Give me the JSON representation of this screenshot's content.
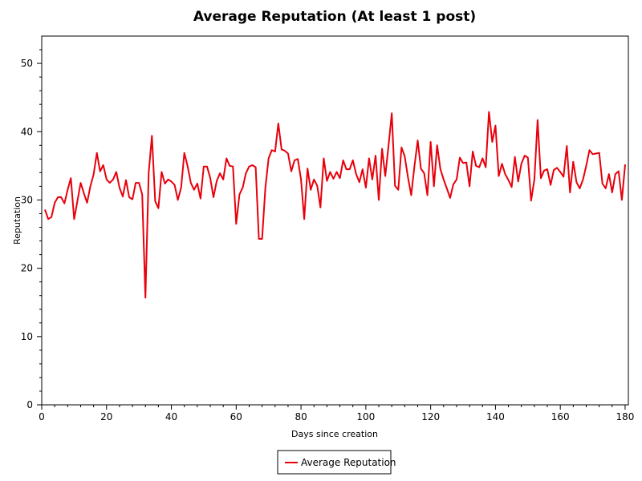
{
  "chart_data": {
    "type": "line",
    "title": "Average Reputation (At least 1 post)",
    "xlabel": "Days since creation",
    "ylabel": "Reputation",
    "xlim": [
      0,
      181
    ],
    "ylim": [
      0,
      54
    ],
    "xticks": [
      0,
      20,
      40,
      60,
      80,
      100,
      120,
      140,
      160,
      180
    ],
    "yticks": [
      0,
      10,
      20,
      30,
      40,
      50
    ],
    "grid": false,
    "legend_position": "bottom-center",
    "series": [
      {
        "name": "Average Reputation",
        "color": "#e8000b",
        "x": [
          1,
          2,
          3,
          4,
          5,
          6,
          7,
          8,
          9,
          10,
          11,
          12,
          13,
          14,
          15,
          16,
          17,
          18,
          19,
          20,
          21,
          22,
          23,
          24,
          25,
          26,
          27,
          28,
          29,
          30,
          31,
          32,
          33,
          34,
          35,
          36,
          37,
          38,
          39,
          40,
          41,
          42,
          43,
          44,
          45,
          46,
          47,
          48,
          49,
          50,
          51,
          52,
          53,
          54,
          55,
          56,
          57,
          58,
          59,
          60,
          61,
          62,
          63,
          64,
          65,
          66,
          67,
          68,
          69,
          70,
          71,
          72,
          73,
          74,
          75,
          76,
          77,
          78,
          79,
          80,
          81,
          82,
          83,
          84,
          85,
          86,
          87,
          88,
          89,
          90,
          91,
          92,
          93,
          94,
          95,
          96,
          97,
          98,
          99,
          100,
          101,
          102,
          103,
          104,
          105,
          106,
          107,
          108,
          109,
          110,
          111,
          112,
          113,
          114,
          115,
          116,
          117,
          118,
          119,
          120,
          121,
          122,
          123,
          124,
          125,
          126,
          127,
          128,
          129,
          130,
          131,
          132,
          133,
          134,
          135,
          136,
          137,
          138,
          139,
          140,
          141,
          142,
          143,
          144,
          145,
          146,
          147,
          148,
          149,
          150,
          151,
          152,
          153,
          154,
          155,
          156,
          157,
          158,
          159,
          160,
          161,
          162,
          163,
          164,
          165,
          166,
          167,
          168,
          169,
          170,
          171,
          172,
          173,
          174,
          175,
          176,
          177,
          178,
          179,
          180
        ],
        "y": [
          28.6,
          27.2,
          27.5,
          29.6,
          30.4,
          30.4,
          29.5,
          31.5,
          33.2,
          27.2,
          29.8,
          32.5,
          31.0,
          29.6,
          32.0,
          33.7,
          36.9,
          34.2,
          35.1,
          33.0,
          32.5,
          33.0,
          34.1,
          31.8,
          30.5,
          32.9,
          30.4,
          30.1,
          32.5,
          32.5,
          30.8,
          15.7,
          34.0,
          39.4,
          29.8,
          28.8,
          34.1,
          32.4,
          33.0,
          32.7,
          32.2,
          30.0,
          31.8,
          36.9,
          35.0,
          32.5,
          31.5,
          32.4,
          30.2,
          34.9,
          34.9,
          33.2,
          30.4,
          32.8,
          33.9,
          33.0,
          36.1,
          35.0,
          34.9,
          26.5,
          30.8,
          31.8,
          33.9,
          34.9,
          35.1,
          34.8,
          24.3,
          24.3,
          31.8,
          36.1,
          37.3,
          37.1,
          41.2,
          37.4,
          37.2,
          36.8,
          34.2,
          35.8,
          36.0,
          33.0,
          27.2,
          34.6,
          31.5,
          33.0,
          32.1,
          28.9,
          36.1,
          32.8,
          34.1,
          33.1,
          34.1,
          33.2,
          35.8,
          34.5,
          34.5,
          35.8,
          33.8,
          32.6,
          34.5,
          31.8,
          36.1,
          33.0,
          36.5,
          30.0,
          37.5,
          33.5,
          37.9,
          42.7,
          32.1,
          31.5,
          37.7,
          36.4,
          33.3,
          30.7,
          34.9,
          38.7,
          34.6,
          33.9,
          30.7,
          38.5,
          32.0,
          38.0,
          34.5,
          33.0,
          31.7,
          30.3,
          32.3,
          33.0,
          36.2,
          35.4,
          35.5,
          32.0,
          37.1,
          35.0,
          34.8,
          36.1,
          34.8,
          42.9,
          38.5,
          40.9,
          33.5,
          35.3,
          33.8,
          32.9,
          31.9,
          36.3,
          32.7,
          35.3,
          36.5,
          36.2,
          29.9,
          33.0,
          41.7,
          33.2,
          34.3,
          34.5,
          32.2,
          34.4,
          34.7,
          34.1,
          33.4,
          37.9,
          31.1,
          35.6,
          32.6,
          31.7,
          33.0,
          35.0,
          37.3,
          36.7,
          36.8,
          36.9,
          32.4,
          31.7,
          33.8,
          31.1,
          33.8,
          34.2,
          30.0,
          35.2
        ]
      }
    ]
  }
}
